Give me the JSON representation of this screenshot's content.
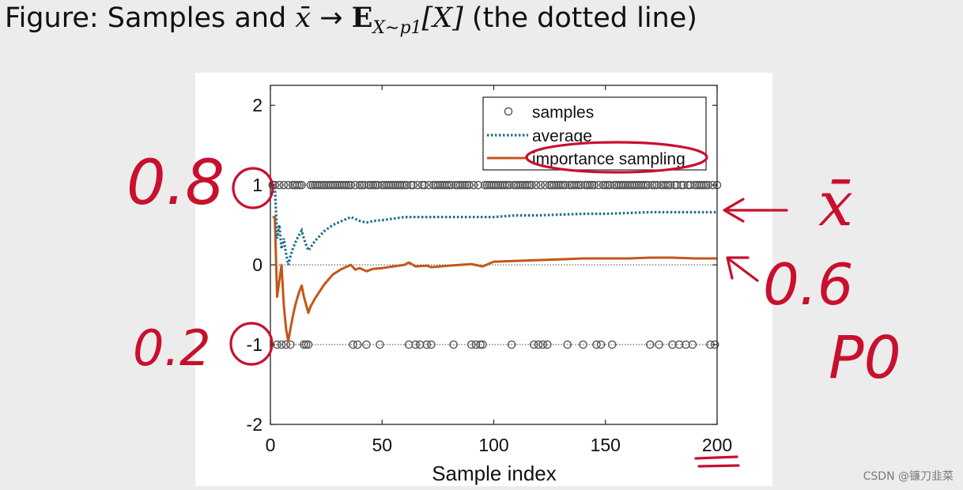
{
  "title": {
    "prefix": "Figure: Samples and ",
    "xbar": "x̄",
    "arrow": " → ",
    "expect": "E",
    "sub": "X∼p1",
    "bracket": "[X]",
    "suffix": " (the dotted line)"
  },
  "watermark": "CSDN @镰刀韭菜",
  "colors": {
    "samples": "#555555",
    "average": "#1f6f8b",
    "importance": "#c4561a",
    "annotation": "#c8102e"
  },
  "annotations": {
    "p08": "0.8",
    "p02": "0.2",
    "p06": "0.6",
    "xbar": "x̄",
    "p0": "P0"
  },
  "chart_data": {
    "type": "line",
    "xlabel": "Sample index",
    "ylabel": "",
    "xlim": [
      0,
      200
    ],
    "ylim": [
      -2,
      2.25
    ],
    "xticks": [
      0,
      50,
      100,
      150,
      200
    ],
    "yticks": [
      -2,
      -1,
      0,
      1,
      2
    ],
    "grid": false,
    "reference_lines": [
      -1,
      0,
      1
    ],
    "legend_position": "top-right",
    "legend": [
      "samples",
      "average",
      "importance sampling"
    ],
    "series": [
      {
        "name": "samples",
        "style": "markers",
        "x_at_minus1": [
          3,
          5,
          7,
          9,
          15,
          16,
          17,
          37,
          39,
          43,
          49,
          62,
          65,
          67,
          70,
          72,
          82,
          90,
          92,
          94,
          95,
          108,
          118,
          120,
          122,
          124,
          133,
          140,
          146,
          148,
          153,
          170,
          174,
          180,
          183,
          186,
          189,
          197,
          199
        ],
        "x_at_1": [
          1,
          2,
          4,
          6,
          8,
          10,
          11,
          12,
          13,
          14,
          18,
          19,
          20,
          21,
          22,
          23,
          24,
          25,
          26,
          27,
          28,
          29,
          30,
          31,
          32,
          33,
          34,
          35,
          36,
          38,
          40,
          41,
          42,
          44,
          45,
          46,
          47,
          48,
          50,
          51,
          52,
          53,
          54,
          55,
          56,
          57,
          58,
          59,
          60,
          61,
          63,
          64,
          66,
          68,
          69,
          71,
          73,
          74,
          75,
          76,
          77,
          78,
          79,
          80,
          81,
          83,
          84,
          85,
          86,
          87,
          88,
          89,
          91,
          93,
          96,
          97,
          98,
          99,
          100,
          101,
          102,
          103,
          104,
          105,
          106,
          107,
          109,
          110,
          111,
          112,
          113,
          114,
          115,
          116,
          117,
          119,
          121,
          123,
          125,
          126,
          127,
          128,
          129,
          130,
          131,
          132,
          134,
          135,
          136,
          137,
          138,
          139,
          141,
          142,
          143,
          144,
          145,
          147,
          149,
          150,
          151,
          152,
          154,
          155,
          156,
          157,
          158,
          159,
          160,
          161,
          162,
          163,
          164,
          165,
          166,
          167,
          168,
          169,
          171,
          172,
          173,
          175,
          176,
          177,
          178,
          179,
          181,
          182,
          184,
          185,
          187,
          188,
          190,
          191,
          192,
          193,
          194,
          195,
          196,
          198,
          200
        ]
      },
      {
        "name": "average",
        "style": "dotted",
        "x": [
          1,
          2,
          3,
          4,
          5,
          6,
          7,
          8,
          9,
          10,
          11,
          12,
          13,
          14,
          15,
          16,
          17,
          18,
          20,
          24,
          28,
          32,
          36,
          40,
          43,
          46,
          50,
          55,
          60,
          65,
          70,
          80,
          90,
          100,
          110,
          120,
          130,
          140,
          150,
          160,
          170,
          180,
          190,
          200
        ],
        "y": [
          1.0,
          1.0,
          0.33,
          0.5,
          0.2,
          0.33,
          0.14,
          0.0,
          0.11,
          0.2,
          0.27,
          0.33,
          0.38,
          0.43,
          0.33,
          0.25,
          0.18,
          0.22,
          0.3,
          0.42,
          0.5,
          0.55,
          0.6,
          0.55,
          0.53,
          0.55,
          0.56,
          0.58,
          0.6,
          0.6,
          0.6,
          0.6,
          0.6,
          0.6,
          0.62,
          0.62,
          0.63,
          0.64,
          0.64,
          0.65,
          0.66,
          0.66,
          0.66,
          0.66
        ]
      },
      {
        "name": "importance sampling",
        "style": "solid",
        "x": [
          1,
          2,
          3,
          4,
          5,
          6,
          7,
          8,
          9,
          10,
          11,
          12,
          13,
          14,
          15,
          16,
          17,
          18,
          20,
          24,
          28,
          32,
          36,
          38,
          40,
          43,
          46,
          50,
          55,
          60,
          62,
          65,
          70,
          72,
          80,
          90,
          95,
          100,
          110,
          120,
          130,
          140,
          150,
          160,
          170,
          180,
          190,
          200
        ],
        "y": [
          0.6,
          0.6,
          -0.4,
          -0.2,
          0.0,
          -0.5,
          -0.8,
          -0.96,
          -0.8,
          -0.65,
          -0.52,
          -0.42,
          -0.33,
          -0.26,
          -0.4,
          -0.5,
          -0.6,
          -0.52,
          -0.42,
          -0.25,
          -0.12,
          -0.05,
          0.0,
          -0.06,
          -0.04,
          -0.08,
          -0.05,
          -0.04,
          -0.02,
          0.0,
          0.03,
          -0.02,
          -0.01,
          -0.03,
          -0.01,
          0.01,
          -0.02,
          0.04,
          0.05,
          0.06,
          0.07,
          0.08,
          0.08,
          0.08,
          0.09,
          0.09,
          0.08,
          0.08
        ]
      }
    ]
  }
}
